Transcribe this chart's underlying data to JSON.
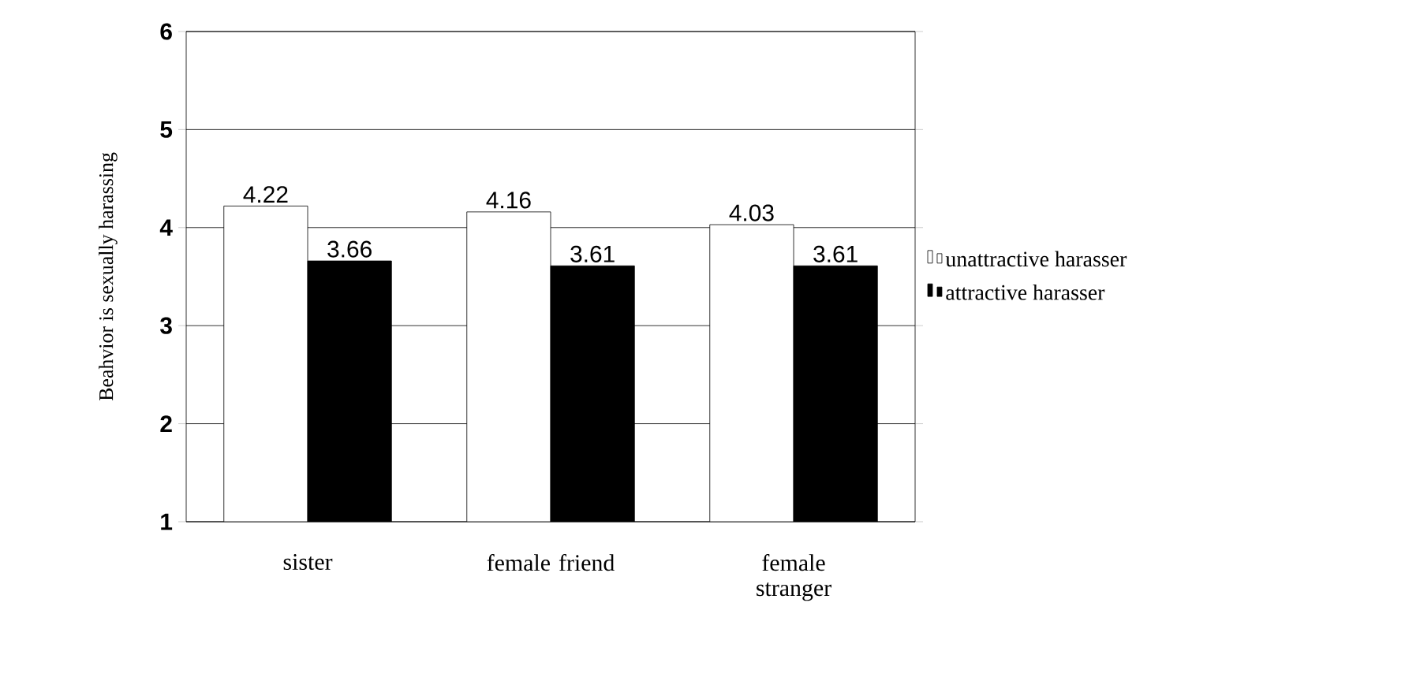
{
  "chart_data": {
    "type": "bar",
    "ylabel": "Beahvior is sexually harassing",
    "categories": [
      "sister",
      "female friend",
      "female stranger"
    ],
    "series": [
      {
        "name": "unattractive harasser",
        "color": "#ffffff",
        "values": [
          4.22,
          4.16,
          4.03
        ]
      },
      {
        "name": "attractive harasser",
        "color": "#000000",
        "values": [
          3.66,
          3.61,
          3.61
        ]
      }
    ],
    "ylim": [
      1,
      6
    ],
    "yticks": [
      1,
      2,
      3,
      4,
      5,
      6
    ],
    "grid": "y",
    "legend": "right",
    "data_labels": true
  }
}
